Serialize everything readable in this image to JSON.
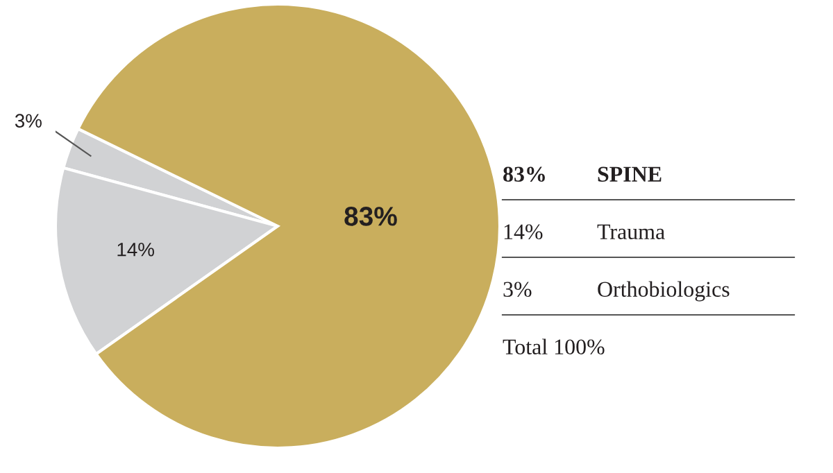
{
  "chart_data": {
    "type": "pie",
    "categories": [
      null,
      null,
      null
    ],
    "values": [
      83,
      14,
      3
    ],
    "colors": [
      "#c9ae5d",
      "#d1d2d4",
      "#d1d2d4"
    ],
    "value_labels": [
      "83%",
      "14%",
      "3%"
    ],
    "annotations": [
      "SPINE",
      "Trauma",
      "Orthobiologics",
      "Total 100%"
    ]
  }
}
